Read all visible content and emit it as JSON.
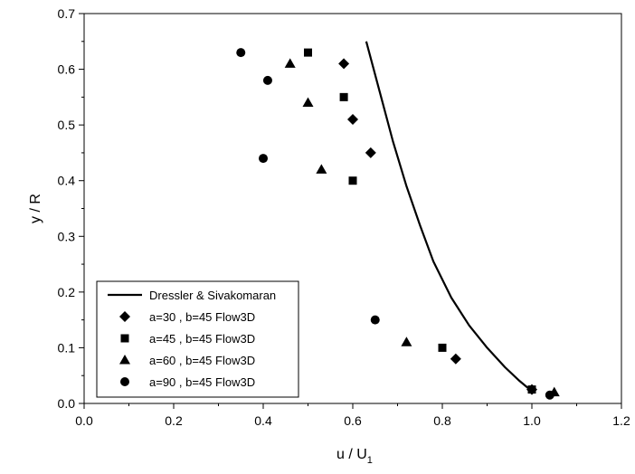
{
  "chart_data": {
    "type": "scatter",
    "title": "",
    "xlabel": "u / U",
    "xlabel_subscript": "1",
    "ylabel": "y / R",
    "xlim": [
      0.0,
      1.2
    ],
    "ylim": [
      0.0,
      0.7
    ],
    "xticks": [
      "0.0",
      "0.2",
      "0.4",
      "0.6",
      "0.8",
      "1.0",
      "1.2"
    ],
    "yticks": [
      "0.0",
      "0.1",
      "0.2",
      "0.3",
      "0.4",
      "0.5",
      "0.6",
      "0.7"
    ],
    "grid": false,
    "legend_position": "bottom-left",
    "series": [
      {
        "name": "Dressler & Sivakomaran",
        "kind": "line",
        "marker": "none",
        "points": [
          [
            0.63,
            0.65
          ],
          [
            0.66,
            0.56
          ],
          [
            0.69,
            0.47
          ],
          [
            0.72,
            0.39
          ],
          [
            0.75,
            0.32
          ],
          [
            0.78,
            0.255
          ],
          [
            0.82,
            0.19
          ],
          [
            0.86,
            0.14
          ],
          [
            0.9,
            0.1
          ],
          [
            0.94,
            0.065
          ],
          [
            0.97,
            0.042
          ],
          [
            1.0,
            0.022
          ]
        ]
      },
      {
        "name": "a=30 , b=45 Flow3D",
        "kind": "scatter",
        "marker": "diamond",
        "points": [
          [
            0.58,
            0.61
          ],
          [
            0.6,
            0.51
          ],
          [
            0.64,
            0.45
          ],
          [
            0.83,
            0.08
          ],
          [
            1.0,
            0.025
          ]
        ]
      },
      {
        "name": "a=45 , b=45 Flow3D",
        "kind": "scatter",
        "marker": "square",
        "points": [
          [
            0.5,
            0.63
          ],
          [
            0.58,
            0.55
          ],
          [
            0.6,
            0.4
          ],
          [
            0.8,
            0.1
          ],
          [
            1.0,
            0.025
          ]
        ]
      },
      {
        "name": "a=60 , b=45 Flow3D",
        "kind": "scatter",
        "marker": "triangle",
        "points": [
          [
            0.46,
            0.61
          ],
          [
            0.5,
            0.54
          ],
          [
            0.53,
            0.42
          ],
          [
            0.72,
            0.11
          ],
          [
            1.05,
            0.02
          ]
        ]
      },
      {
        "name": "a=90 , b=45 Flow3D",
        "kind": "scatter",
        "marker": "circle",
        "points": [
          [
            0.35,
            0.63
          ],
          [
            0.41,
            0.58
          ],
          [
            0.4,
            0.44
          ],
          [
            0.65,
            0.15
          ],
          [
            1.04,
            0.015
          ]
        ]
      }
    ]
  }
}
